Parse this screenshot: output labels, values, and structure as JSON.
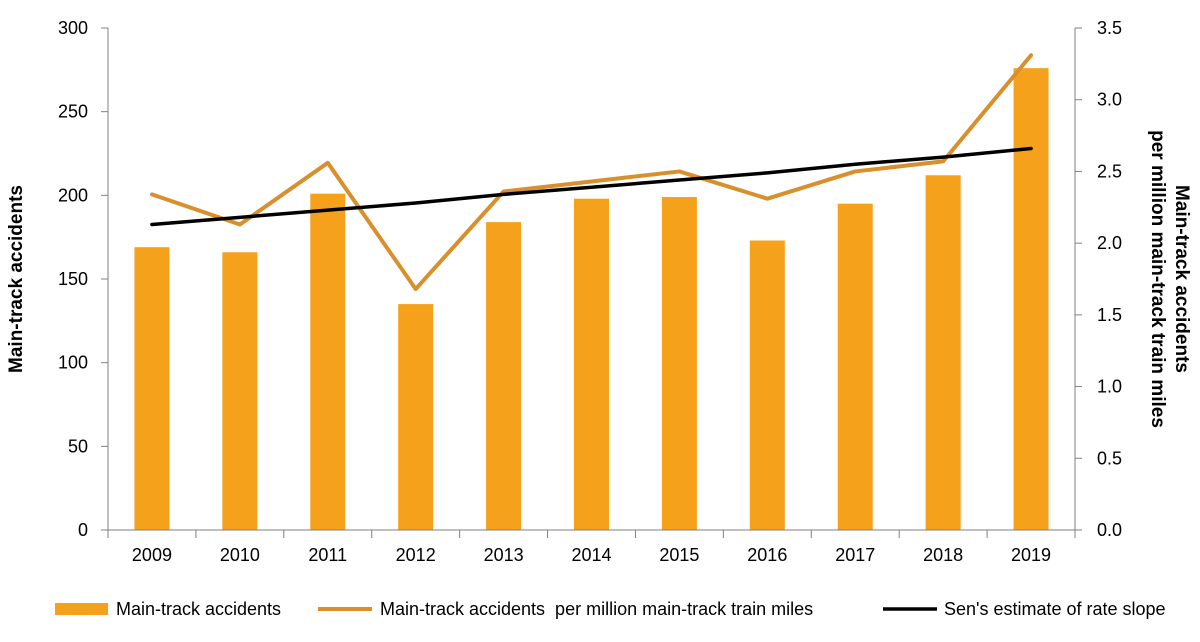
{
  "chart_data": {
    "type": "bar",
    "categories": [
      "2009",
      "2010",
      "2011",
      "2012",
      "2013",
      "2014",
      "2015",
      "2016",
      "2017",
      "2018",
      "2019"
    ],
    "series": [
      {
        "name": "Main-track accidents",
        "type": "bar",
        "axis": "left",
        "color": "#F5A11C",
        "values": [
          169,
          166,
          201,
          135,
          184,
          198,
          199,
          173,
          195,
          212,
          276
        ]
      },
      {
        "name": "Main-track accidents  per million main-track train miles",
        "type": "line",
        "axis": "right",
        "color": "#D98F2B",
        "values": [
          2.34,
          2.13,
          2.56,
          1.68,
          2.36,
          2.43,
          2.5,
          2.31,
          2.5,
          2.57,
          3.31
        ]
      },
      {
        "name": "Sen's estimate of rate slope",
        "type": "line",
        "axis": "right",
        "color": "#000000",
        "values": [
          2.13,
          2.18,
          2.23,
          2.28,
          2.34,
          2.39,
          2.44,
          2.49,
          2.55,
          2.6,
          2.66
        ]
      }
    ],
    "ylabel_left": "Main-track accidents",
    "ylabel_right": [
      "Main-track accidents",
      "per million main-track train miles"
    ],
    "ylim_left": [
      0,
      300
    ],
    "yticks_left": [
      "0",
      "50",
      "100",
      "150",
      "200",
      "250",
      "300"
    ],
    "ylim_right": [
      0,
      3.5
    ],
    "yticks_right": [
      "0.0",
      "0.5",
      "1.0",
      "1.5",
      "2.0",
      "2.5",
      "3.0",
      "3.5"
    ],
    "grid": false,
    "legend_position": "bottom"
  }
}
